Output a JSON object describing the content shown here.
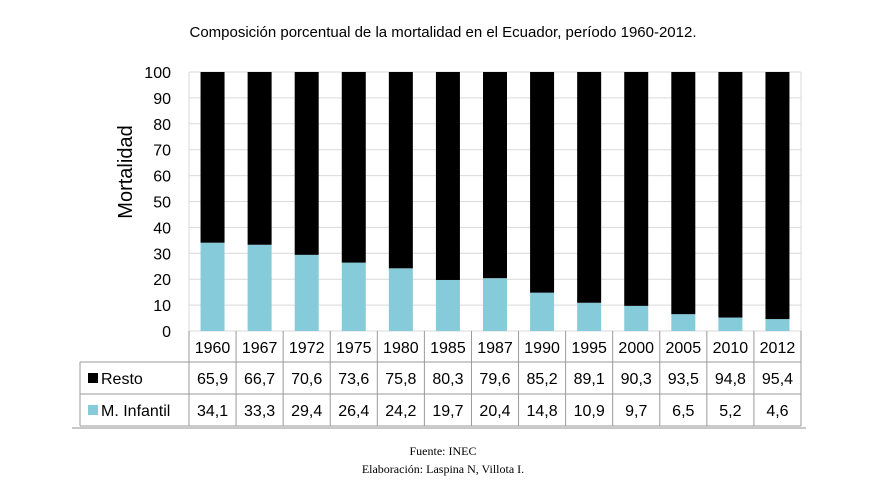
{
  "chart_data": {
    "type": "bar",
    "stacked": true,
    "title": "Composición porcentual de la mortalidad en el Ecuador, período 1960-2012.",
    "ylabel": "Mortalidad",
    "xlabel": "",
    "ylim": [
      0,
      100
    ],
    "yticks": [
      "0",
      "10",
      "20",
      "30",
      "40",
      "50",
      "60",
      "70",
      "80",
      "90",
      "100"
    ],
    "grid": true,
    "categories": [
      "1960",
      "1967",
      "1972",
      "1975",
      "1980",
      "1985",
      "1987",
      "1990",
      "1995",
      "2000",
      "2005",
      "2010",
      "2012"
    ],
    "series": [
      {
        "name": "M. Infantil",
        "color": "#86cbd9",
        "values": [
          34.1,
          33.3,
          29.4,
          26.4,
          24.2,
          19.7,
          20.4,
          14.8,
          10.9,
          9.7,
          6.5,
          5.2,
          4.6
        ],
        "labels": [
          "34,1",
          "33,3",
          "29,4",
          "26,4",
          "24,2",
          "19,7",
          "20,4",
          "14,8",
          "10,9",
          "9,7",
          "6,5",
          "5,2",
          "4,6"
        ]
      },
      {
        "name": "Resto",
        "color": "#000000",
        "values": [
          65.9,
          66.7,
          70.6,
          73.6,
          75.8,
          80.3,
          79.6,
          85.2,
          89.1,
          90.3,
          93.5,
          94.8,
          95.4
        ],
        "labels": [
          "65,9",
          "66,7",
          "70,6",
          "73,6",
          "75,8",
          "80,3",
          "79,6",
          "85,2",
          "89,1",
          "90,3",
          "93,5",
          "94,8",
          "95,4"
        ]
      }
    ],
    "legend": "data-table-below"
  },
  "caption": {
    "source": "Fuente: INEC",
    "credits": "Elaboración: Laspina N, Villota I."
  }
}
